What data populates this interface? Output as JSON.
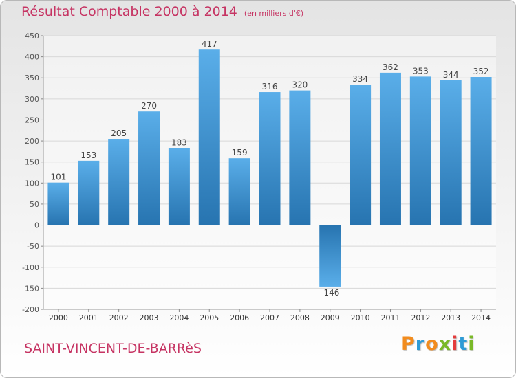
{
  "header": {
    "title": "Résultat Comptable 2000 à 2014",
    "subtitle": "(en milliers d'€)"
  },
  "footer": {
    "commune": "SAINT-VINCENT-DE-BARRèS",
    "logo_text": "Proxiti",
    "logo_colors": [
      "#f28c1e",
      "#2e9bd6",
      "#f28c1e",
      "#7ab928",
      "#e43c3c",
      "#2e9bd6",
      "#7ab928"
    ]
  },
  "colors": {
    "title": "#c63463",
    "bar_light": "#5aaee9",
    "bar_dark": "#2774b0",
    "grid": "#d8d8d8"
  },
  "chart_data": {
    "type": "bar",
    "title": "Résultat Comptable 2000 à 2014",
    "unit": "(en milliers d'€)",
    "categories": [
      "2000",
      "2001",
      "2002",
      "2003",
      "2004",
      "2005",
      "2006",
      "2007",
      "2008",
      "2009",
      "2010",
      "2011",
      "2012",
      "2013",
      "2014"
    ],
    "values": [
      101,
      153,
      205,
      270,
      183,
      417,
      159,
      316,
      320,
      -146,
      334,
      362,
      353,
      344,
      352
    ],
    "yticks": [
      -200,
      -150,
      -100,
      -50,
      0,
      50,
      100,
      150,
      200,
      250,
      300,
      350,
      400,
      450
    ],
    "ylim": [
      -200,
      450
    ],
    "grid": true,
    "xlabel": "",
    "ylabel": ""
  }
}
